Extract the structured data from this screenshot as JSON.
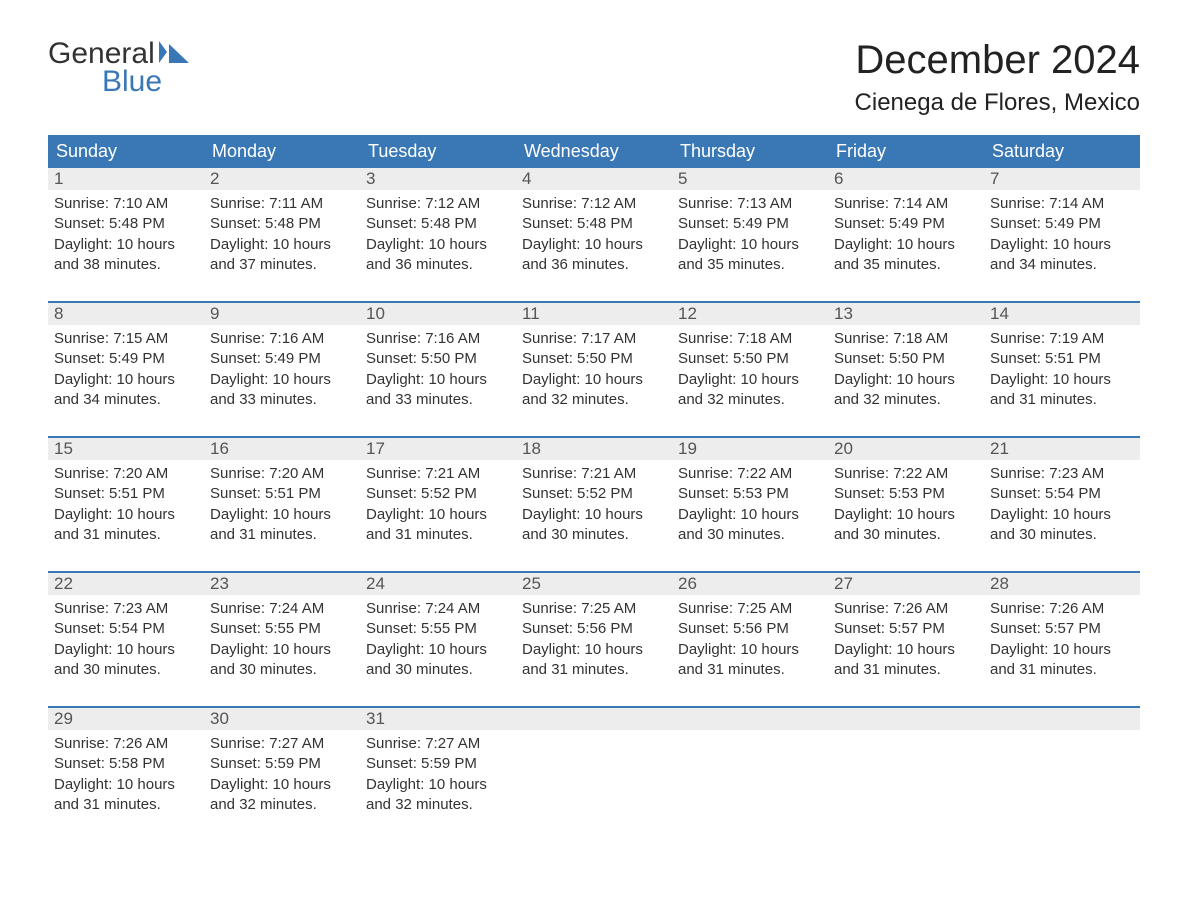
{
  "logo": {
    "word1": "General",
    "word2": "Blue",
    "accent_color": "#3a78b5"
  },
  "title": "December 2024",
  "location": "Cienega de Flores, Mexico",
  "colors": {
    "header_bg": "#3a78b5",
    "header_fg": "#ffffff",
    "daynum_bg": "#ededed",
    "daynum_fg": "#555555",
    "body_fg": "#333333",
    "border": "#3a78b5",
    "page_bg": "#ffffff"
  },
  "day_headers": [
    "Sunday",
    "Monday",
    "Tuesday",
    "Wednesday",
    "Thursday",
    "Friday",
    "Saturday"
  ],
  "weeks": [
    [
      {
        "num": "1",
        "sunrise": "Sunrise: 7:10 AM",
        "sunset": "Sunset: 5:48 PM",
        "daylight1": "Daylight: 10 hours",
        "daylight2": "and 38 minutes."
      },
      {
        "num": "2",
        "sunrise": "Sunrise: 7:11 AM",
        "sunset": "Sunset: 5:48 PM",
        "daylight1": "Daylight: 10 hours",
        "daylight2": "and 37 minutes."
      },
      {
        "num": "3",
        "sunrise": "Sunrise: 7:12 AM",
        "sunset": "Sunset: 5:48 PM",
        "daylight1": "Daylight: 10 hours",
        "daylight2": "and 36 minutes."
      },
      {
        "num": "4",
        "sunrise": "Sunrise: 7:12 AM",
        "sunset": "Sunset: 5:48 PM",
        "daylight1": "Daylight: 10 hours",
        "daylight2": "and 36 minutes."
      },
      {
        "num": "5",
        "sunrise": "Sunrise: 7:13 AM",
        "sunset": "Sunset: 5:49 PM",
        "daylight1": "Daylight: 10 hours",
        "daylight2": "and 35 minutes."
      },
      {
        "num": "6",
        "sunrise": "Sunrise: 7:14 AM",
        "sunset": "Sunset: 5:49 PM",
        "daylight1": "Daylight: 10 hours",
        "daylight2": "and 35 minutes."
      },
      {
        "num": "7",
        "sunrise": "Sunrise: 7:14 AM",
        "sunset": "Sunset: 5:49 PM",
        "daylight1": "Daylight: 10 hours",
        "daylight2": "and 34 minutes."
      }
    ],
    [
      {
        "num": "8",
        "sunrise": "Sunrise: 7:15 AM",
        "sunset": "Sunset: 5:49 PM",
        "daylight1": "Daylight: 10 hours",
        "daylight2": "and 34 minutes."
      },
      {
        "num": "9",
        "sunrise": "Sunrise: 7:16 AM",
        "sunset": "Sunset: 5:49 PM",
        "daylight1": "Daylight: 10 hours",
        "daylight2": "and 33 minutes."
      },
      {
        "num": "10",
        "sunrise": "Sunrise: 7:16 AM",
        "sunset": "Sunset: 5:50 PM",
        "daylight1": "Daylight: 10 hours",
        "daylight2": "and 33 minutes."
      },
      {
        "num": "11",
        "sunrise": "Sunrise: 7:17 AM",
        "sunset": "Sunset: 5:50 PM",
        "daylight1": "Daylight: 10 hours",
        "daylight2": "and 32 minutes."
      },
      {
        "num": "12",
        "sunrise": "Sunrise: 7:18 AM",
        "sunset": "Sunset: 5:50 PM",
        "daylight1": "Daylight: 10 hours",
        "daylight2": "and 32 minutes."
      },
      {
        "num": "13",
        "sunrise": "Sunrise: 7:18 AM",
        "sunset": "Sunset: 5:50 PM",
        "daylight1": "Daylight: 10 hours",
        "daylight2": "and 32 minutes."
      },
      {
        "num": "14",
        "sunrise": "Sunrise: 7:19 AM",
        "sunset": "Sunset: 5:51 PM",
        "daylight1": "Daylight: 10 hours",
        "daylight2": "and 31 minutes."
      }
    ],
    [
      {
        "num": "15",
        "sunrise": "Sunrise: 7:20 AM",
        "sunset": "Sunset: 5:51 PM",
        "daylight1": "Daylight: 10 hours",
        "daylight2": "and 31 minutes."
      },
      {
        "num": "16",
        "sunrise": "Sunrise: 7:20 AM",
        "sunset": "Sunset: 5:51 PM",
        "daylight1": "Daylight: 10 hours",
        "daylight2": "and 31 minutes."
      },
      {
        "num": "17",
        "sunrise": "Sunrise: 7:21 AM",
        "sunset": "Sunset: 5:52 PM",
        "daylight1": "Daylight: 10 hours",
        "daylight2": "and 31 minutes."
      },
      {
        "num": "18",
        "sunrise": "Sunrise: 7:21 AM",
        "sunset": "Sunset: 5:52 PM",
        "daylight1": "Daylight: 10 hours",
        "daylight2": "and 30 minutes."
      },
      {
        "num": "19",
        "sunrise": "Sunrise: 7:22 AM",
        "sunset": "Sunset: 5:53 PM",
        "daylight1": "Daylight: 10 hours",
        "daylight2": "and 30 minutes."
      },
      {
        "num": "20",
        "sunrise": "Sunrise: 7:22 AM",
        "sunset": "Sunset: 5:53 PM",
        "daylight1": "Daylight: 10 hours",
        "daylight2": "and 30 minutes."
      },
      {
        "num": "21",
        "sunrise": "Sunrise: 7:23 AM",
        "sunset": "Sunset: 5:54 PM",
        "daylight1": "Daylight: 10 hours",
        "daylight2": "and 30 minutes."
      }
    ],
    [
      {
        "num": "22",
        "sunrise": "Sunrise: 7:23 AM",
        "sunset": "Sunset: 5:54 PM",
        "daylight1": "Daylight: 10 hours",
        "daylight2": "and 30 minutes."
      },
      {
        "num": "23",
        "sunrise": "Sunrise: 7:24 AM",
        "sunset": "Sunset: 5:55 PM",
        "daylight1": "Daylight: 10 hours",
        "daylight2": "and 30 minutes."
      },
      {
        "num": "24",
        "sunrise": "Sunrise: 7:24 AM",
        "sunset": "Sunset: 5:55 PM",
        "daylight1": "Daylight: 10 hours",
        "daylight2": "and 30 minutes."
      },
      {
        "num": "25",
        "sunrise": "Sunrise: 7:25 AM",
        "sunset": "Sunset: 5:56 PM",
        "daylight1": "Daylight: 10 hours",
        "daylight2": "and 31 minutes."
      },
      {
        "num": "26",
        "sunrise": "Sunrise: 7:25 AM",
        "sunset": "Sunset: 5:56 PM",
        "daylight1": "Daylight: 10 hours",
        "daylight2": "and 31 minutes."
      },
      {
        "num": "27",
        "sunrise": "Sunrise: 7:26 AM",
        "sunset": "Sunset: 5:57 PM",
        "daylight1": "Daylight: 10 hours",
        "daylight2": "and 31 minutes."
      },
      {
        "num": "28",
        "sunrise": "Sunrise: 7:26 AM",
        "sunset": "Sunset: 5:57 PM",
        "daylight1": "Daylight: 10 hours",
        "daylight2": "and 31 minutes."
      }
    ],
    [
      {
        "num": "29",
        "sunrise": "Sunrise: 7:26 AM",
        "sunset": "Sunset: 5:58 PM",
        "daylight1": "Daylight: 10 hours",
        "daylight2": "and 31 minutes."
      },
      {
        "num": "30",
        "sunrise": "Sunrise: 7:27 AM",
        "sunset": "Sunset: 5:59 PM",
        "daylight1": "Daylight: 10 hours",
        "daylight2": "and 32 minutes."
      },
      {
        "num": "31",
        "sunrise": "Sunrise: 7:27 AM",
        "sunset": "Sunset: 5:59 PM",
        "daylight1": "Daylight: 10 hours",
        "daylight2": "and 32 minutes."
      },
      {
        "empty": true
      },
      {
        "empty": true
      },
      {
        "empty": true
      },
      {
        "empty": true
      }
    ]
  ]
}
